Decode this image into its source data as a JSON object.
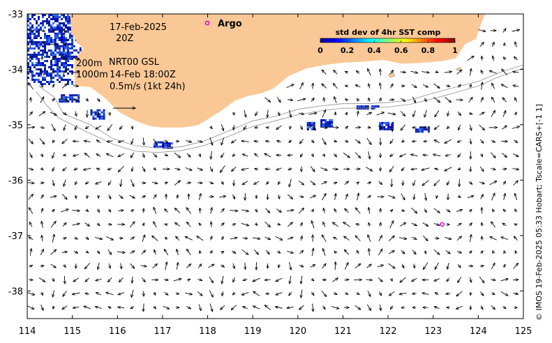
{
  "map": {
    "date": "17-Feb-2025",
    "hour": "20Z",
    "argo_label": "Argo",
    "depth_line_1": "200m",
    "depth_line_2": "1000m",
    "product": "NRT00 GSL",
    "product_time": "14-Feb 18:00Z",
    "scale_label": "0.5m/s (1kt 24h)",
    "colorbar": {
      "title": "std dev of 4hr SST comp",
      "ticks": [
        "0",
        "0.2",
        "0.4",
        "0.6",
        "0.8",
        "1"
      ]
    },
    "credit": "© IMOS 19-Feb-2025 05:33 Hobart; Tscale=CARS+[-1 1]",
    "colors": {
      "land": "#fac896",
      "argo": "#e000e0",
      "sst_dense": "#0a1e9e",
      "isobath": "#8c8c8c"
    },
    "x_ticks": [
      "114",
      "115",
      "116",
      "117",
      "118",
      "119",
      "120",
      "121",
      "122",
      "123",
      "124",
      "125"
    ],
    "y_ticks": [
      "-33",
      "-34",
      "-35",
      "-36",
      "-37",
      "-38"
    ],
    "lon_range": [
      114,
      125
    ],
    "lat_range": [
      -38.5,
      -33
    ],
    "argo_floats": [
      {
        "lon": 118.0,
        "lat": -33.17
      },
      {
        "lon": 123.2,
        "lat": -36.8
      }
    ],
    "coastline": [
      [
        114,
        -33
      ],
      [
        114.95,
        -33
      ],
      [
        114.98,
        -33.35
      ],
      [
        115.15,
        -33.55
      ],
      [
        115.25,
        -33.62
      ],
      [
        115.15,
        -33.72
      ],
      [
        115.05,
        -33.85
      ],
      [
        115.05,
        -34.3
      ],
      [
        115.4,
        -34.32
      ],
      [
        115.7,
        -34.5
      ],
      [
        116.05,
        -34.78
      ],
      [
        116.4,
        -34.93
      ],
      [
        116.7,
        -35.02
      ],
      [
        117.0,
        -35.05
      ],
      [
        117.45,
        -35.05
      ],
      [
        117.7,
        -35.02
      ],
      [
        117.8,
        -35.0
      ],
      [
        117.95,
        -34.93
      ],
      [
        118.3,
        -34.75
      ],
      [
        118.6,
        -34.57
      ],
      [
        118.9,
        -34.48
      ],
      [
        119.2,
        -34.43
      ],
      [
        119.45,
        -34.35
      ],
      [
        119.8,
        -34.12
      ],
      [
        120.2,
        -33.98
      ],
      [
        120.6,
        -33.92
      ],
      [
        121.0,
        -33.88
      ],
      [
        121.5,
        -33.86
      ],
      [
        121.9,
        -33.83
      ],
      [
        122.3,
        -33.9
      ],
      [
        122.8,
        -33.88
      ],
      [
        123.2,
        -33.85
      ],
      [
        123.5,
        -33.8
      ],
      [
        123.7,
        -33.55
      ],
      [
        123.95,
        -33.45
      ],
      [
        124.05,
        -33.2
      ],
      [
        124.15,
        -33
      ]
    ],
    "islands": [
      [
        [
          122.0,
          -34.1
        ],
        [
          122.12,
          -34.05
        ],
        [
          122.15,
          -34.12
        ],
        [
          122.05,
          -34.15
        ]
      ],
      [
        [
          123.5,
          -34.0
        ],
        [
          123.6,
          -33.96
        ],
        [
          123.62,
          -34.03
        ]
      ]
    ],
    "iso200": [
      [
        114.25,
        -34.3
      ],
      [
        114.6,
        -34.5
      ],
      [
        114.8,
        -34.8
      ],
      [
        115.4,
        -35.0
      ],
      [
        115.9,
        -35.25
      ],
      [
        116.4,
        -35.38
      ],
      [
        116.9,
        -35.42
      ],
      [
        117.4,
        -35.4
      ],
      [
        117.9,
        -35.3
      ],
      [
        118.5,
        -35.1
      ],
      [
        119.0,
        -34.93
      ],
      [
        119.5,
        -34.85
      ],
      [
        120.0,
        -34.72
      ],
      [
        120.5,
        -34.66
      ],
      [
        121.0,
        -34.62
      ],
      [
        121.5,
        -34.62
      ],
      [
        122.0,
        -34.6
      ],
      [
        122.5,
        -34.55
      ],
      [
        123.0,
        -34.43
      ],
      [
        123.5,
        -34.32
      ],
      [
        124.0,
        -34.22
      ],
      [
        124.5,
        -34.05
      ],
      [
        125,
        -33.92
      ]
    ],
    "iso1000": [
      [
        114.2,
        -34.4
      ],
      [
        114.4,
        -34.62
      ],
      [
        114.7,
        -34.88
      ],
      [
        115.3,
        -35.12
      ],
      [
        115.9,
        -35.35
      ],
      [
        116.4,
        -35.48
      ],
      [
        116.9,
        -35.5
      ],
      [
        117.4,
        -35.47
      ],
      [
        117.9,
        -35.38
      ],
      [
        118.5,
        -35.2
      ],
      [
        119.0,
        -35.03
      ],
      [
        119.5,
        -34.93
      ],
      [
        120.0,
        -34.82
      ],
      [
        120.5,
        -34.75
      ],
      [
        121.0,
        -34.7
      ],
      [
        121.5,
        -34.7
      ],
      [
        122.0,
        -34.68
      ],
      [
        122.5,
        -34.63
      ],
      [
        123.0,
        -34.53
      ],
      [
        123.5,
        -34.42
      ],
      [
        124.0,
        -34.3
      ],
      [
        124.5,
        -34.12
      ],
      [
        125,
        -33.98
      ]
    ],
    "sst_patches": [
      {
        "lon": 114.0,
        "lat": -33.0,
        "w": 1.0,
        "h": 1.25,
        "density": 0.55
      },
      {
        "lon": 114.6,
        "lat": -33.3,
        "w": 0.6,
        "h": 0.5,
        "density": 0.35
      },
      {
        "lon": 114.7,
        "lat": -34.45,
        "w": 0.45,
        "h": 0.15,
        "density": 0.75
      },
      {
        "lon": 115.4,
        "lat": -34.72,
        "w": 0.3,
        "h": 0.17,
        "density": 0.8
      },
      {
        "lon": 116.8,
        "lat": -35.3,
        "w": 0.2,
        "h": 0.1,
        "density": 0.8
      },
      {
        "lon": 117.0,
        "lat": -35.32,
        "w": 0.2,
        "h": 0.1,
        "density": 0.8
      },
      {
        "lon": 120.2,
        "lat": -34.95,
        "w": 0.16,
        "h": 0.12,
        "density": 0.85
      },
      {
        "lon": 120.5,
        "lat": -34.9,
        "w": 0.25,
        "h": 0.15,
        "density": 0.85
      },
      {
        "lon": 121.3,
        "lat": -34.65,
        "w": 0.5,
        "h": 0.07,
        "density": 0.75
      },
      {
        "lon": 121.8,
        "lat": -34.95,
        "w": 0.3,
        "h": 0.12,
        "density": 0.85
      },
      {
        "lon": 122.6,
        "lat": -35.03,
        "w": 0.3,
        "h": 0.1,
        "density": 0.85
      }
    ],
    "scale_arrow": {
      "lon0": 115.9,
      "lon1": 116.4,
      "lat": -34.7
    }
  }
}
